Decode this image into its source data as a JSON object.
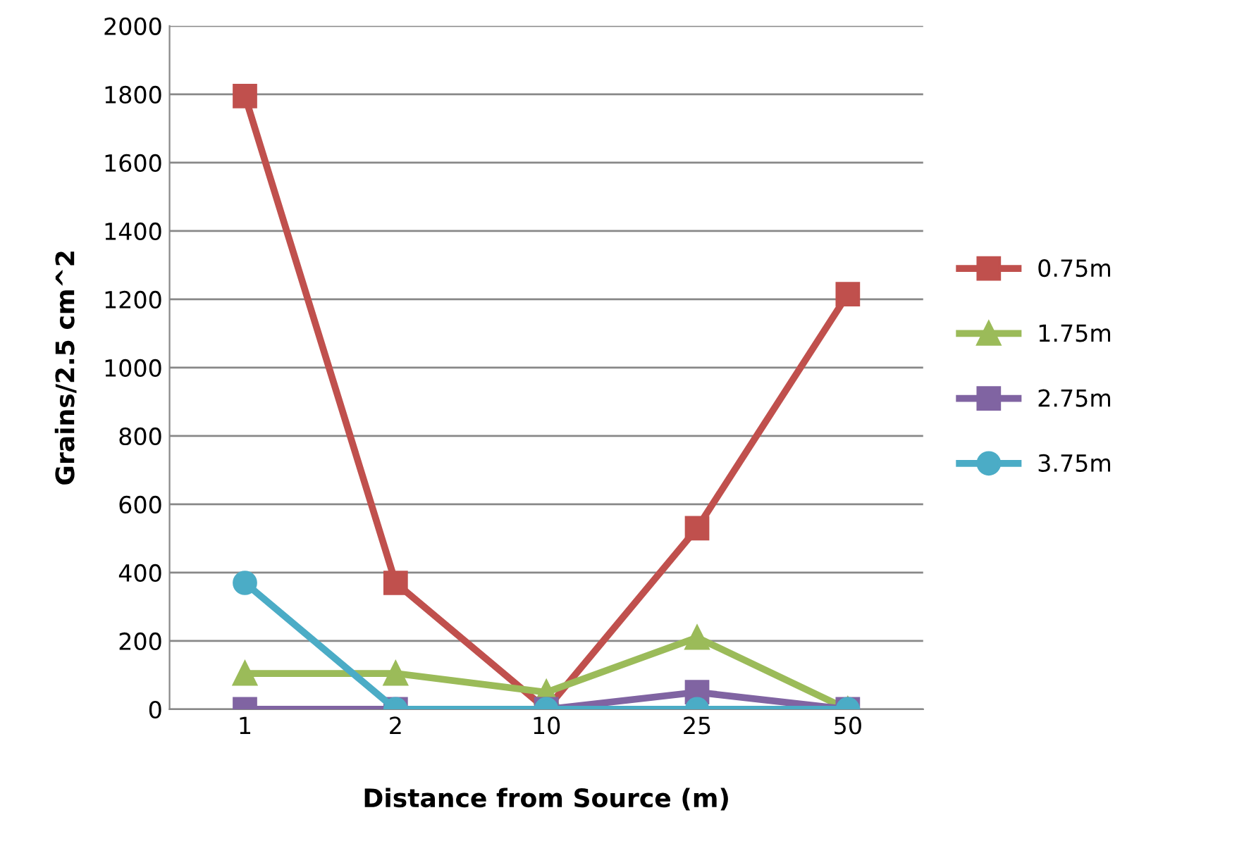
{
  "chart_data": {
    "type": "line",
    "xlabel": "Distance from Source (m)",
    "ylabel": "Grains/2.5 cm^2",
    "categories": [
      "1",
      "2",
      "10",
      "25",
      "50"
    ],
    "ylim": [
      0,
      2000
    ],
    "yticks": [
      0,
      200,
      400,
      600,
      800,
      1000,
      1200,
      1400,
      1600,
      1800,
      2000
    ],
    "grid": "y",
    "legend": "right",
    "series": [
      {
        "name": "0.75m",
        "color": "#c0504d",
        "marker": "square",
        "values": [
          1795,
          370,
          0,
          530,
          1215
        ]
      },
      {
        "name": "1.75m",
        "color": "#9bbb59",
        "marker": "triangle",
        "values": [
          105,
          105,
          50,
          210,
          0
        ]
      },
      {
        "name": "2.75m",
        "color": "#8064a2",
        "marker": "square",
        "values": [
          0,
          0,
          0,
          50,
          0
        ]
      },
      {
        "name": "3.75m",
        "color": "#4bacc6",
        "marker": "circle",
        "values": [
          370,
          0,
          0,
          0,
          0
        ]
      }
    ]
  }
}
